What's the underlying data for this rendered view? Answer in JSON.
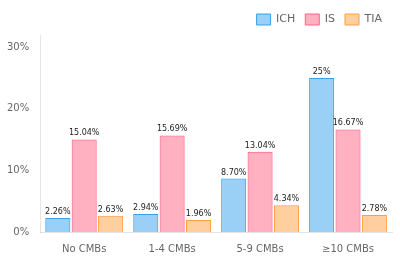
{
  "chart_data": {
    "type": "bar",
    "categories": [
      "No CMBs",
      "1-4 CMBs",
      "5-9 CMBs",
      "≥10 CMBs"
    ],
    "series": [
      {
        "name": "ICH",
        "values": [
          2.26,
          2.94,
          8.7,
          25.0
        ],
        "value_labels": [
          "2.26%",
          "2.94%",
          "8.70%",
          "25%"
        ]
      },
      {
        "name": "IS",
        "values": [
          15.04,
          15.69,
          13.04,
          16.67
        ],
        "value_labels": [
          "15.04%",
          "15.69%",
          "13.04%",
          "16.67%"
        ]
      },
      {
        "name": "TIA",
        "values": [
          2.63,
          1.96,
          4.34,
          2.78
        ],
        "value_labels": [
          "2.63%",
          "1.96%",
          "4.34%",
          "2.78%"
        ]
      }
    ],
    "ylim": [
      0,
      32
    ],
    "yticks": [
      {
        "value": 0,
        "label": "0%"
      },
      {
        "value": 10,
        "label": "10%"
      },
      {
        "value": 20,
        "label": "20%"
      },
      {
        "value": 30,
        "label": "30%"
      }
    ],
    "grid": false,
    "legend": "upper right",
    "data_labels": true
  }
}
